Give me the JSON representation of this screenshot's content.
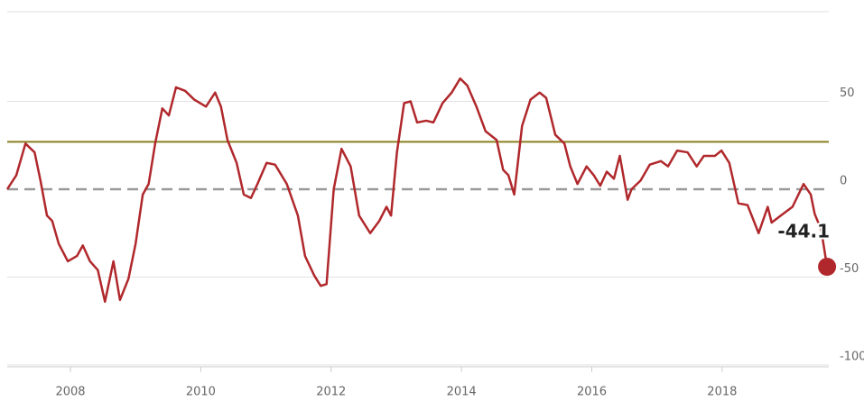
{
  "chart_data": {
    "type": "line",
    "x": [
      2007.03,
      2007.17,
      2007.31,
      2007.45,
      2007.54,
      2007.64,
      2007.72,
      2007.82,
      2007.96,
      2008.1,
      2008.19,
      2008.3,
      2008.42,
      2008.53,
      2008.66,
      2008.76,
      2008.89,
      2009.0,
      2009.11,
      2009.2,
      2009.3,
      2009.41,
      2009.51,
      2009.62,
      2009.76,
      2009.9,
      2010.08,
      2010.22,
      2010.31,
      2010.41,
      2010.55,
      2010.66,
      2010.77,
      2010.87,
      2011.01,
      2011.14,
      2011.32,
      2011.49,
      2011.6,
      2011.74,
      2011.84,
      2011.93,
      2012.04,
      2012.16,
      2012.3,
      2012.43,
      2012.6,
      2012.74,
      2012.85,
      2012.92,
      2013.01,
      2013.12,
      2013.22,
      2013.32,
      2013.46,
      2013.57,
      2013.71,
      2013.85,
      2013.98,
      2014.09,
      2014.23,
      2014.37,
      2014.54,
      2014.64,
      2014.72,
      2014.81,
      2014.93,
      2015.06,
      2015.2,
      2015.3,
      2015.44,
      2015.58,
      2015.67,
      2015.78,
      2015.92,
      2016.03,
      2016.13,
      2016.23,
      2016.34,
      2016.43,
      2016.55,
      2016.61,
      2016.75,
      2016.89,
      2017.06,
      2017.17,
      2017.31,
      2017.47,
      2017.61,
      2017.72,
      2017.89,
      2017.99,
      2018.11,
      2018.25,
      2018.39,
      2018.56,
      2018.7,
      2018.76,
      2018.9,
      2019.08,
      2019.25,
      2019.36,
      2019.42,
      2019.52,
      2019.61
    ],
    "series": [
      {
        "color": "#b0282c",
        "values": [
          0,
          8,
          26,
          21,
          5,
          -15,
          -18,
          -31,
          -41,
          -38,
          -32,
          -41,
          -46,
          -64,
          -41,
          -63,
          -51,
          -31,
          -3,
          3,
          26,
          46,
          42,
          58,
          56,
          51,
          47,
          55,
          47,
          28,
          15,
          -3,
          -5,
          3,
          15,
          14,
          3,
          -15,
          -38,
          -49,
          -55,
          -54,
          0,
          23,
          13,
          -15,
          -25,
          -18,
          -10,
          -15,
          21,
          49,
          50,
          38,
          39,
          38,
          49,
          55,
          63,
          59,
          47,
          33,
          28,
          11,
          8,
          -3,
          36,
          51,
          55,
          52,
          31,
          26,
          13,
          3,
          13,
          8,
          2,
          10,
          6,
          19,
          -6,
          0,
          5,
          14,
          16,
          13,
          22,
          21,
          13,
          19,
          19,
          22,
          15,
          -8,
          -9,
          -25,
          -10,
          -19,
          -15,
          -10,
          3,
          -3,
          -14,
          -23,
          -44.1
        ]
      }
    ],
    "xlim": [
      2007.03,
      2019.9
    ],
    "xticks": [
      2008,
      2010,
      2012,
      2014,
      2016,
      2018
    ],
    "ylim": [
      -100,
      100
    ],
    "yticks": [
      50,
      0,
      -50,
      -100
    ],
    "reference_lines": [
      {
        "value": 27,
        "color": "#8a7f1f"
      },
      {
        "value": 0,
        "color": "#999999",
        "style": "dashed"
      }
    ],
    "grid": true
  }
}
